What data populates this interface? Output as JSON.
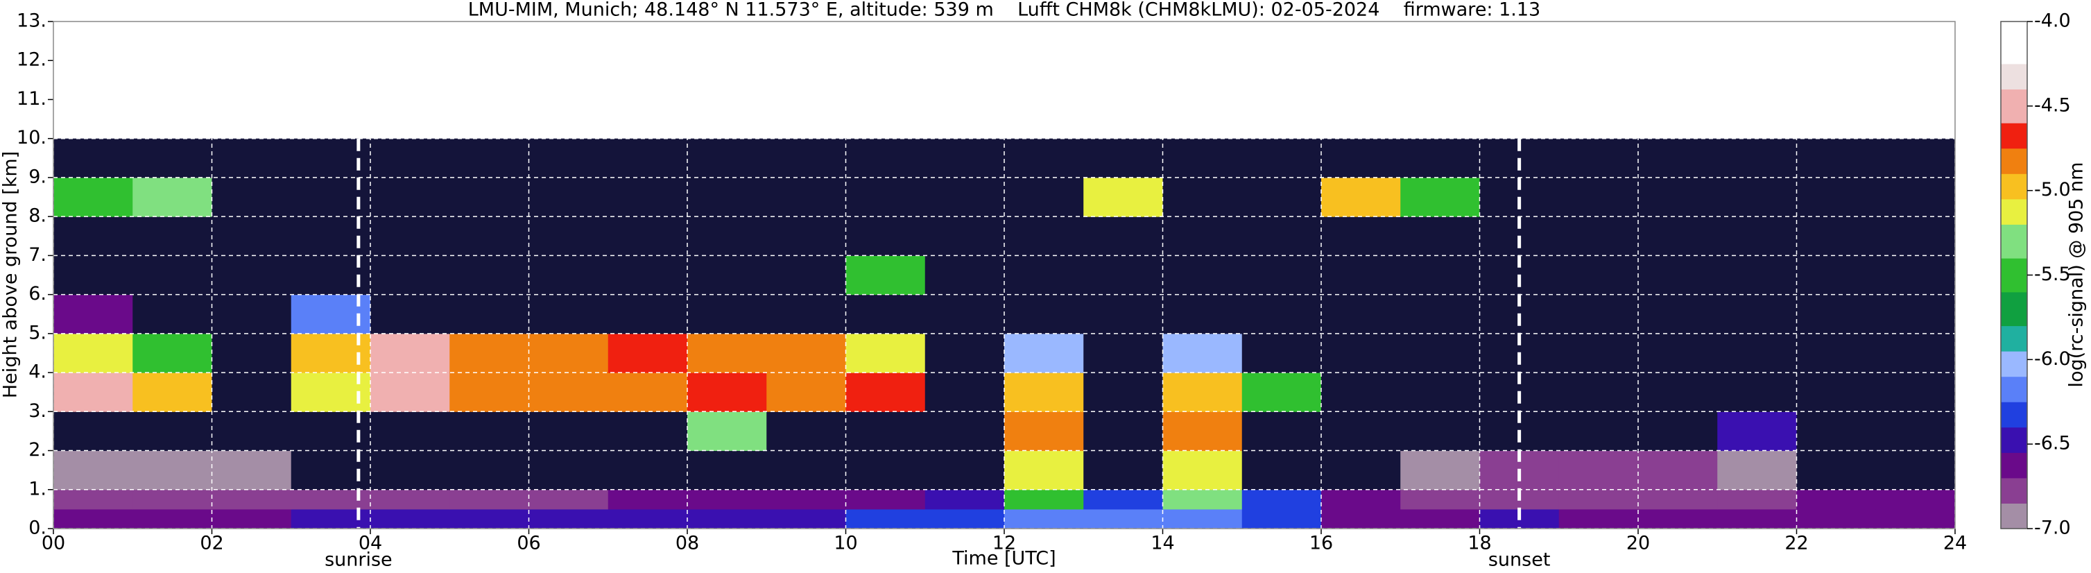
{
  "chart_data": {
    "type": "heatmap",
    "title": "LMU-MIM, Munich; 48.148° N 11.573° E, altitude: 539 m    Lufft CHM8k (CHM8kLMU): 02-05-2024    firmware: 1.13",
    "x_label": "Time [UTC]",
    "y_label": "Height above ground [km]",
    "colorbar_label": "log(rc-signal) @ 905 nm",
    "xlim": [
      0,
      24
    ],
    "xticks": [
      {
        "value": 0,
        "label": "00"
      },
      {
        "value": 2,
        "label": "02"
      },
      {
        "value": 4,
        "label": "04"
      },
      {
        "value": 6,
        "label": "06"
      },
      {
        "value": 8,
        "label": "08"
      },
      {
        "value": 10,
        "label": "10"
      },
      {
        "value": 12,
        "label": "12"
      },
      {
        "value": 14,
        "label": "14"
      },
      {
        "value": 16,
        "label": "16"
      },
      {
        "value": 18,
        "label": "18"
      },
      {
        "value": 20,
        "label": "20"
      },
      {
        "value": 22,
        "label": "22"
      },
      {
        "value": 24,
        "label": "24"
      }
    ],
    "ylim": [
      0,
      13
    ],
    "yticks": [
      {
        "value": 0,
        "label": "0."
      },
      {
        "value": 1,
        "label": "1."
      },
      {
        "value": 2,
        "label": "2."
      },
      {
        "value": 3,
        "label": "3."
      },
      {
        "value": 4,
        "label": "4."
      },
      {
        "value": 5,
        "label": "5."
      },
      {
        "value": 6,
        "label": "6."
      },
      {
        "value": 7,
        "label": "7."
      },
      {
        "value": 8,
        "label": "8."
      },
      {
        "value": 9,
        "label": "9."
      },
      {
        "value": 10,
        "label": "10."
      },
      {
        "value": 11,
        "label": "11."
      },
      {
        "value": 12,
        "label": "12."
      },
      {
        "value": 13,
        "label": "13."
      }
    ],
    "clim": [
      -7.0,
      -4.0
    ],
    "cticks": [
      {
        "value": -4,
        "label": "-4.0"
      },
      {
        "value": -4.5,
        "label": "-4.5"
      },
      {
        "value": -5,
        "label": "-5.0"
      },
      {
        "value": -5.5,
        "label": "-5.5"
      },
      {
        "value": -6,
        "label": "-6.0"
      },
      {
        "value": -6.5,
        "label": "-6.5"
      },
      {
        "value": -7,
        "label": "-7.0"
      }
    ],
    "colormap": [
      {
        "value": -7.0,
        "color": "#a48ea6"
      },
      {
        "value": -6.85,
        "color": "#8a3f92"
      },
      {
        "value": -6.7,
        "color": "#6a0a8a"
      },
      {
        "value": -6.55,
        "color": "#3a10b0"
      },
      {
        "value": -6.4,
        "color": "#2040e0"
      },
      {
        "value": -6.25,
        "color": "#5a80f8"
      },
      {
        "value": -6.1,
        "color": "#9ab8ff"
      },
      {
        "value": -5.95,
        "color": "#20b0a0"
      },
      {
        "value": -5.8,
        "color": "#10a040"
      },
      {
        "value": -5.6,
        "color": "#30c030"
      },
      {
        "value": -5.4,
        "color": "#80e080"
      },
      {
        "value": -5.2,
        "color": "#e8f040"
      },
      {
        "value": -5.05,
        "color": "#f8c020"
      },
      {
        "value": -4.9,
        "color": "#f08010"
      },
      {
        "value": -4.75,
        "color": "#f02010"
      },
      {
        "value": -4.6,
        "color": "#f0b0b0"
      },
      {
        "value": -4.4,
        "color": "#ede0e0"
      },
      {
        "value": -4.25,
        "color": "#ffffff"
      }
    ],
    "under_color": "#14143a",
    "grid": true,
    "x_edges": [
      0,
      1,
      2,
      3,
      4,
      5,
      6,
      7,
      8,
      9,
      10,
      11,
      12,
      13,
      14,
      15,
      16,
      17,
      18,
      19,
      20,
      21,
      22,
      23,
      24
    ],
    "y_edges": [
      0,
      0.5,
      1,
      2,
      3,
      4,
      5,
      6,
      7,
      8,
      9,
      10
    ],
    "z": [
      [
        -6.6,
        -6.6,
        -6.6,
        -6.55,
        -6.5,
        -6.5,
        -6.5,
        -6.5,
        -6.45,
        -6.45,
        -6.4,
        -6.35,
        -6.25,
        -6.2,
        -6.25,
        -6.3,
        -6.6,
        -6.6,
        -6.5,
        -6.6,
        -6.65,
        -6.65,
        -6.7,
        -6.7
      ],
      [
        -6.75,
        -6.75,
        -6.8,
        -6.8,
        -6.75,
        -6.75,
        -6.75,
        -6.7,
        -6.7,
        -6.7,
        -6.65,
        -6.55,
        -5.5,
        -6.35,
        -5.4,
        -6.4,
        -6.7,
        -6.75,
        -6.8,
        -6.8,
        -6.75,
        -6.75,
        -6.65,
        -6.7
      ],
      [
        -6.9,
        -6.9,
        -6.95,
        -7.2,
        -7.3,
        -7.3,
        -7.3,
        -7.3,
        -7.3,
        -7.3,
        -7.3,
        -7.3,
        -5.2,
        -7.2,
        -5.1,
        -7.3,
        -7.2,
        -6.9,
        -6.85,
        -6.85,
        -6.85,
        -6.9,
        -7.8,
        -7.8
      ],
      [
        -7.3,
        -7.3,
        -7.3,
        -7.3,
        -7.3,
        -7.3,
        -7.3,
        -7.3,
        -5.4,
        -7.3,
        -7.3,
        -7.3,
        -4.9,
        -7.3,
        -4.8,
        -7.3,
        -7.3,
        -7.3,
        -7.3,
        -7.3,
        -7.3,
        -6.5,
        -7.8,
        -7.8
      ],
      [
        -4.6,
        -5.0,
        -7.3,
        -5.2,
        -4.5,
        -4.8,
        -4.9,
        -4.9,
        -4.75,
        -4.8,
        -4.7,
        -7.3,
        -5.0,
        -7.3,
        -5.0,
        -5.6,
        -7.3,
        -7.3,
        -7.3,
        -7.3,
        -7.3,
        -7.3,
        -7.3,
        -7.3
      ],
      [
        -5.1,
        -5.5,
        -7.3,
        -5.0,
        -4.6,
        -4.9,
        -4.8,
        -4.7,
        -4.8,
        -4.85,
        -5.2,
        -7.3,
        -6.0,
        -7.3,
        -6.0,
        -7.3,
        -7.3,
        -7.3,
        -7.3,
        -7.3,
        -7.3,
        -7.3,
        -7.3,
        -7.3
      ],
      [
        -6.6,
        -7.3,
        -7.3,
        -6.2,
        -7.3,
        -7.3,
        -7.3,
        -7.3,
        -7.3,
        -7.3,
        -7.3,
        -7.3,
        -7.3,
        -7.3,
        -7.3,
        -7.3,
        -7.3,
        -7.3,
        -7.3,
        -7.3,
        -7.3,
        -7.3,
        -7.3,
        -7.3
      ],
      [
        -7.3,
        -7.3,
        -7.3,
        -7.3,
        -7.3,
        -7.3,
        -7.3,
        -7.3,
        -7.3,
        -7.3,
        -5.6,
        -7.3,
        -7.3,
        -7.3,
        -7.3,
        -7.3,
        -7.3,
        -7.3,
        -7.3,
        -7.3,
        -7.3,
        -7.3,
        -7.3,
        -7.3
      ],
      [
        -7.3,
        -7.3,
        -7.3,
        -7.3,
        -7.3,
        -7.3,
        -7.3,
        -7.3,
        -7.3,
        -7.3,
        -7.3,
        -7.3,
        -7.3,
        -7.3,
        -7.3,
        -7.3,
        -7.3,
        -7.3,
        -7.3,
        -7.3,
        -7.3,
        -7.3,
        -7.3,
        -7.3
      ],
      [
        -5.6,
        -5.4,
        -7.3,
        -7.3,
        -7.3,
        -7.3,
        -7.3,
        -7.3,
        -7.3,
        -7.3,
        -7.3,
        -7.3,
        -7.3,
        -5.2,
        -7.3,
        -7.3,
        -5.0,
        -5.5,
        -7.3,
        -7.3,
        -7.3,
        -7.3,
        -7.3,
        -7.3
      ],
      [
        -7.3,
        -7.3,
        -7.3,
        -7.3,
        -7.3,
        -7.3,
        -7.3,
        -7.3,
        -7.3,
        -7.3,
        -7.3,
        -7.3,
        -7.3,
        -7.3,
        -7.3,
        -7.3,
        -7.3,
        -7.3,
        -7.3,
        -7.3,
        -7.3,
        -7.3,
        -7.3,
        -7.3
      ]
    ],
    "annotations": [
      {
        "x": 3.85,
        "label": "sunrise"
      },
      {
        "x": 18.5,
        "label": "sunset"
      }
    ]
  }
}
